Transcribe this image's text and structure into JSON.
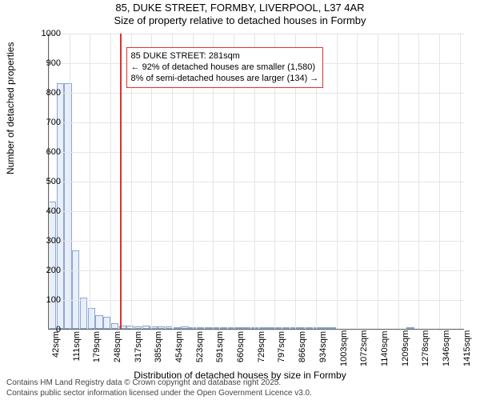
{
  "title": "85, DUKE STREET, FORMBY, LIVERPOOL, L37 4AR",
  "subtitle": "Size of property relative to detached houses in Formby",
  "chart": {
    "type": "histogram",
    "background_color": "#ffffff",
    "grid_color": "#e5e5e5",
    "axis_color": "#666666",
    "label_fontsize": 12,
    "tick_fontsize": 11,
    "title_fontsize": 13,
    "bin_width": 26,
    "ylim": [
      0,
      1000
    ],
    "ytick_step": 100,
    "x_tick_values": [
      42,
      111,
      179,
      248,
      317,
      385,
      454,
      523,
      591,
      660,
      729,
      797,
      866,
      934,
      1003,
      1072,
      1140,
      1209,
      1278,
      1346,
      1415
    ],
    "x_tick_unit": "sqm",
    "x_start": 42,
    "x_end": 1432,
    "ylabel": "Number of detached properties",
    "xlabel": "Distribution of detached houses by size in Formby",
    "bar_values": [
      430,
      830,
      830,
      265,
      105,
      70,
      45,
      40,
      18,
      12,
      10,
      9,
      10,
      9,
      8,
      7,
      6,
      7,
      6,
      6,
      5,
      4,
      4,
      3,
      3,
      2,
      2,
      2,
      2,
      1,
      2,
      1,
      1,
      1,
      1,
      1,
      1,
      0,
      0,
      0,
      0,
      0,
      0,
      0,
      0,
      0,
      1,
      0,
      0,
      0,
      0,
      0,
      0,
      0
    ],
    "bar_fill": "#e9eff9",
    "bar_stroke": "#8aa7d2",
    "marker": {
      "x_value": 281,
      "color": "#e03030",
      "width": 2
    },
    "annotation": {
      "lines": [
        "85 DUKE STREET: 281sqm",
        "← 92% of detached houses are smaller (1,580)",
        "8% of semi-detached houses are larger (134) →"
      ],
      "x_value": 300,
      "y_value": 955,
      "border_color": "#e03030",
      "border_width": 1,
      "background": "#ffffff"
    }
  },
  "footer1": "Contains HM Land Registry data © Crown copyright and database right 2025.",
  "footer2": "Contains public sector information licensed under the Open Government Licence v3.0."
}
